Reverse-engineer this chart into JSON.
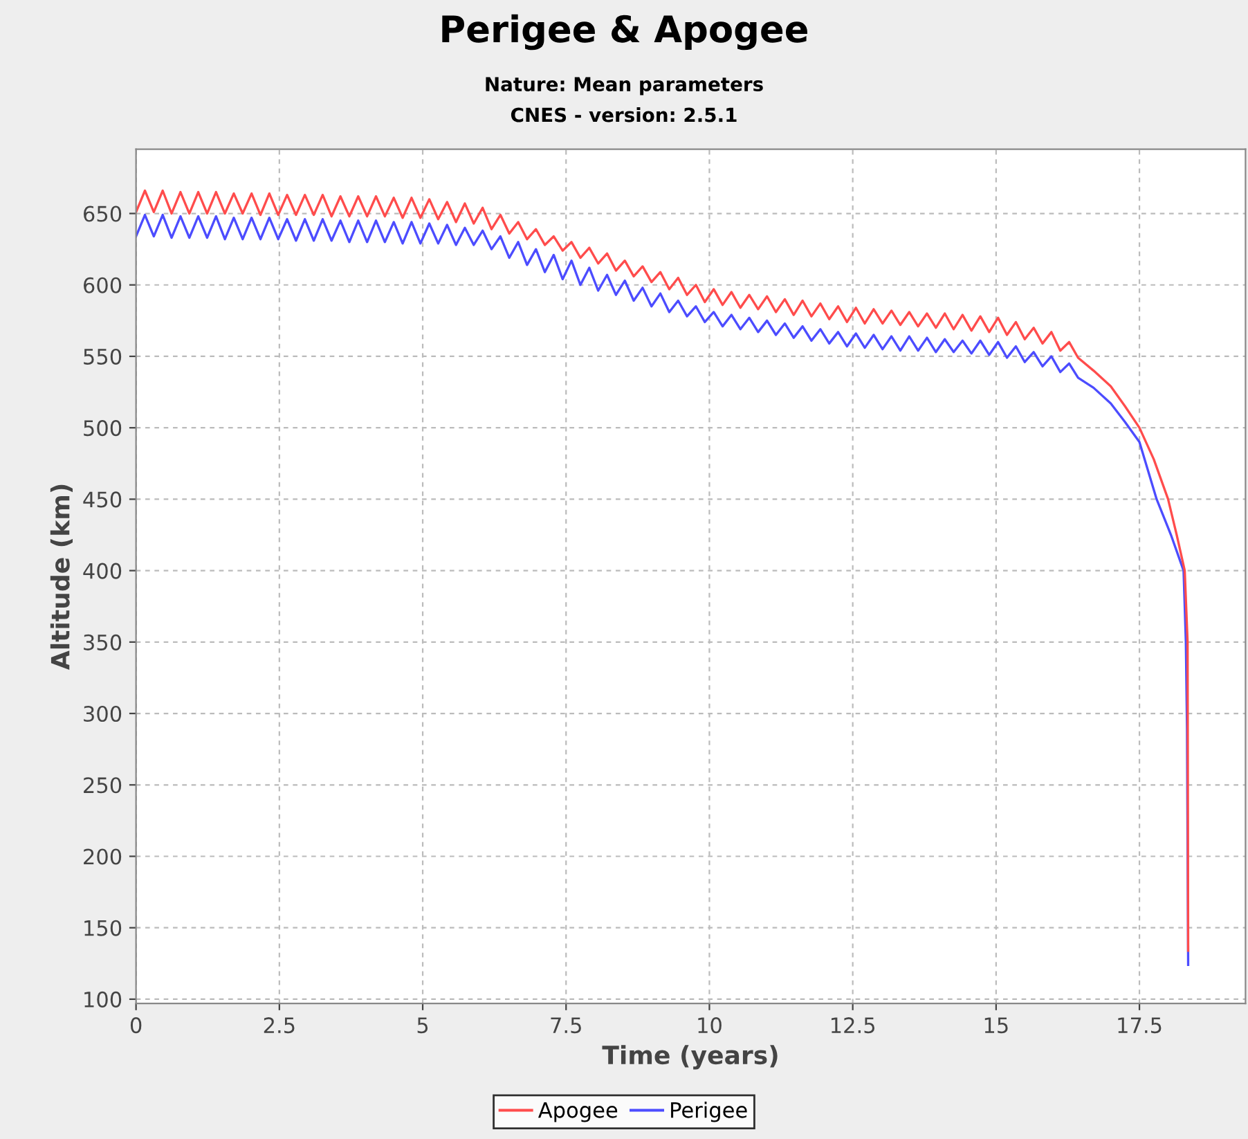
{
  "chart_data": {
    "type": "line",
    "title": "Perigee & Apogee",
    "subtitle": "Nature: Mean parameters",
    "annotations": [
      "CNES - version: 2.5.1"
    ],
    "xlabel": "Time (years)",
    "ylabel": "Altitude (km)",
    "xlim": [
      0,
      19.35
    ],
    "ylim": [
      97,
      695
    ],
    "xticks": [
      0,
      2.5,
      5,
      7.5,
      10,
      12.5,
      15,
      17.5
    ],
    "yticks": [
      100,
      150,
      200,
      250,
      300,
      350,
      400,
      450,
      500,
      550,
      600,
      650
    ],
    "grid": true,
    "legend": "bottom",
    "marker": "none",
    "line_style": "solid",
    "series": [
      {
        "name": "Perigee",
        "color": "#4c4cff",
        "x": [
          0,
          0.155,
          0.31,
          0.465,
          0.62,
          0.775,
          0.93,
          1.085,
          1.24,
          1.395,
          1.55,
          1.705,
          1.86,
          2.015,
          2.17,
          2.325,
          2.48,
          2.635,
          2.79,
          2.945,
          3.1,
          3.255,
          3.41,
          3.565,
          3.72,
          3.875,
          4.03,
          4.185,
          4.34,
          4.495,
          4.65,
          4.805,
          4.96,
          5.115,
          5.27,
          5.425,
          5.58,
          5.735,
          5.89,
          6.045,
          6.2,
          6.355,
          6.51,
          6.665,
          6.82,
          6.975,
          7.13,
          7.285,
          7.44,
          7.595,
          7.75,
          7.905,
          8.06,
          8.215,
          8.37,
          8.525,
          8.68,
          8.835,
          8.99,
          9.145,
          9.3,
          9.455,
          9.61,
          9.765,
          9.92,
          10.075,
          10.23,
          10.385,
          10.54,
          10.695,
          10.85,
          11.005,
          11.16,
          11.315,
          11.47,
          11.625,
          11.78,
          11.935,
          12.09,
          12.245,
          12.4,
          12.555,
          12.71,
          12.865,
          13.02,
          13.175,
          13.33,
          13.485,
          13.64,
          13.795,
          13.95,
          14.105,
          14.26,
          14.415,
          14.57,
          14.725,
          14.88,
          15.035,
          15.19,
          15.345,
          15.5,
          15.655,
          15.81,
          15.965,
          16.12,
          16.275,
          16.43,
          16.7,
          17.0,
          17.25,
          17.5,
          17.8,
          18.05,
          18.27,
          18.31,
          18.33,
          18.35
        ],
        "values": [
          634,
          649,
          634,
          649,
          633,
          648,
          633,
          648,
          633,
          648,
          632,
          647,
          632,
          647,
          632,
          647,
          632,
          646,
          631,
          646,
          631,
          646,
          631,
          645,
          630,
          645,
          630,
          645,
          630,
          644,
          629,
          644,
          629,
          643,
          629,
          642,
          628,
          640,
          628,
          638,
          625,
          634,
          619,
          630,
          614,
          625,
          609,
          621,
          604,
          617,
          600,
          612,
          596,
          607,
          593,
          603,
          589,
          598,
          585,
          594,
          581,
          589,
          578,
          585,
          574,
          581,
          571,
          579,
          569,
          577,
          567,
          575,
          565,
          573,
          563,
          571,
          561,
          569,
          559,
          567,
          557,
          566,
          556,
          565,
          555,
          564,
          554,
          564,
          554,
          563,
          553,
          562,
          553,
          561,
          552,
          561,
          551,
          560,
          549,
          557,
          546,
          553,
          543,
          550,
          539,
          545,
          535,
          528,
          517,
          504,
          490,
          450,
          425,
          400,
          350,
          290,
          124
        ]
      },
      {
        "name": "Apogee",
        "color": "#ff4c4c",
        "x": [
          0,
          0.155,
          0.31,
          0.465,
          0.62,
          0.775,
          0.93,
          1.085,
          1.24,
          1.395,
          1.55,
          1.705,
          1.86,
          2.015,
          2.17,
          2.325,
          2.48,
          2.635,
          2.79,
          2.945,
          3.1,
          3.255,
          3.41,
          3.565,
          3.72,
          3.875,
          4.03,
          4.185,
          4.34,
          4.495,
          4.65,
          4.805,
          4.96,
          5.115,
          5.27,
          5.425,
          5.58,
          5.735,
          5.89,
          6.045,
          6.2,
          6.355,
          6.51,
          6.665,
          6.82,
          6.975,
          7.13,
          7.285,
          7.44,
          7.595,
          7.75,
          7.905,
          8.06,
          8.215,
          8.37,
          8.525,
          8.68,
          8.835,
          8.99,
          9.145,
          9.3,
          9.455,
          9.61,
          9.765,
          9.92,
          10.075,
          10.23,
          10.385,
          10.54,
          10.695,
          10.85,
          11.005,
          11.16,
          11.315,
          11.47,
          11.625,
          11.78,
          11.935,
          12.09,
          12.245,
          12.4,
          12.555,
          12.71,
          12.865,
          13.02,
          13.175,
          13.33,
          13.485,
          13.64,
          13.795,
          13.95,
          14.105,
          14.26,
          14.415,
          14.57,
          14.725,
          14.88,
          15.035,
          15.19,
          15.345,
          15.5,
          15.655,
          15.81,
          15.965,
          16.12,
          16.275,
          16.43,
          16.7,
          17.0,
          17.25,
          17.5,
          17.75,
          18.0,
          18.15,
          18.29,
          18.34,
          18.35
        ],
        "values": [
          651,
          666,
          651,
          666,
          650,
          665,
          650,
          665,
          650,
          665,
          650,
          664,
          650,
          664,
          649,
          664,
          649,
          663,
          649,
          663,
          649,
          663,
          648,
          662,
          648,
          662,
          648,
          662,
          648,
          661,
          647,
          661,
          647,
          660,
          646,
          658,
          644,
          657,
          643,
          654,
          639,
          649,
          636,
          644,
          632,
          639,
          628,
          634,
          624,
          630,
          619,
          626,
          615,
          622,
          610,
          617,
          606,
          613,
          602,
          609,
          597,
          605,
          593,
          600,
          588,
          597,
          586,
          595,
          584,
          593,
          583,
          592,
          581,
          590,
          579,
          589,
          578,
          587,
          576,
          585,
          574,
          584,
          573,
          583,
          573,
          582,
          572,
          581,
          571,
          580,
          570,
          580,
          569,
          579,
          568,
          578,
          567,
          577,
          565,
          574,
          562,
          570,
          559,
          567,
          554,
          560,
          549,
          540,
          529,
          515,
          500,
          478,
          450,
          425,
          400,
          350,
          134
        ]
      }
    ]
  }
}
